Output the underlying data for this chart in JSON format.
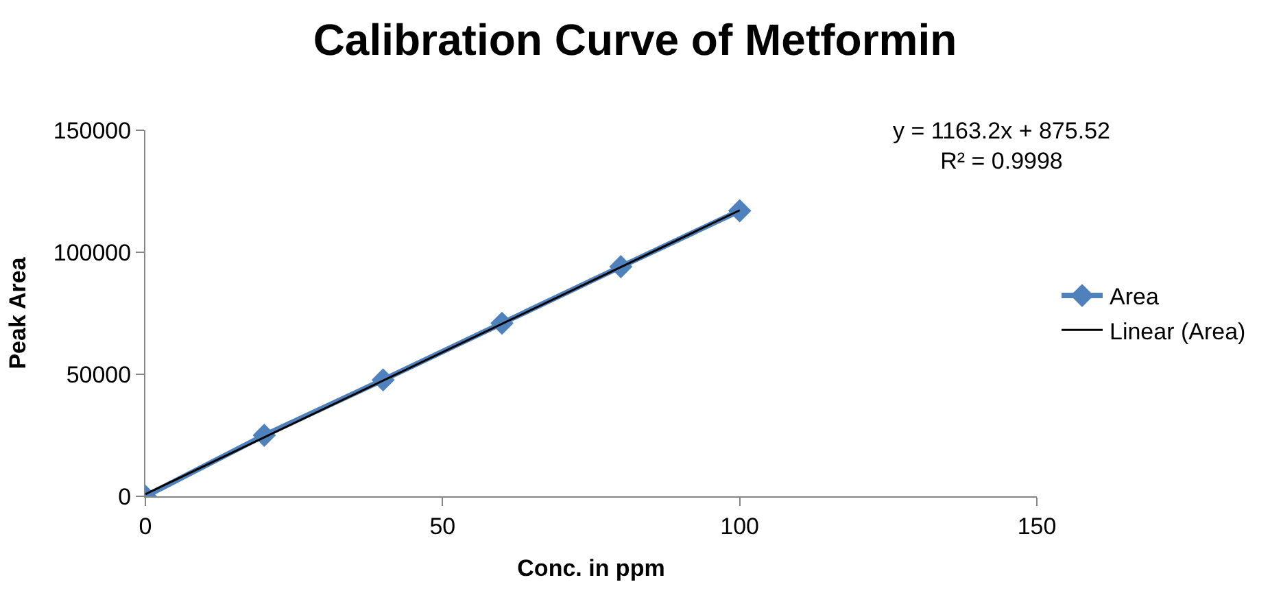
{
  "chart_data": {
    "type": "line",
    "title": "Calibration Curve of Metformin",
    "xlabel": "Conc. in ppm",
    "ylabel": "Peak Area",
    "x": [
      0,
      20,
      40,
      60,
      80,
      100
    ],
    "series": [
      {
        "name": "Area",
        "color": "#4f81bd",
        "values": [
          0,
          25000,
          47700,
          70900,
          94100,
          117000
        ],
        "marker": "diamond"
      },
      {
        "name": "Linear (Area)",
        "type": "line",
        "color": "#000000",
        "x": [
          0,
          100
        ],
        "values": [
          900,
          117200
        ],
        "marker": "none"
      }
    ],
    "annotations": [
      "y = 1163.2x + 875.52\nR² = 0.9998"
    ],
    "xlim": [
      0,
      150
    ],
    "xticks": [
      0,
      50,
      100,
      150
    ],
    "ylim": [
      0,
      150000
    ],
    "yticks": [
      0,
      50000,
      100000,
      150000
    ],
    "legend": "right"
  }
}
